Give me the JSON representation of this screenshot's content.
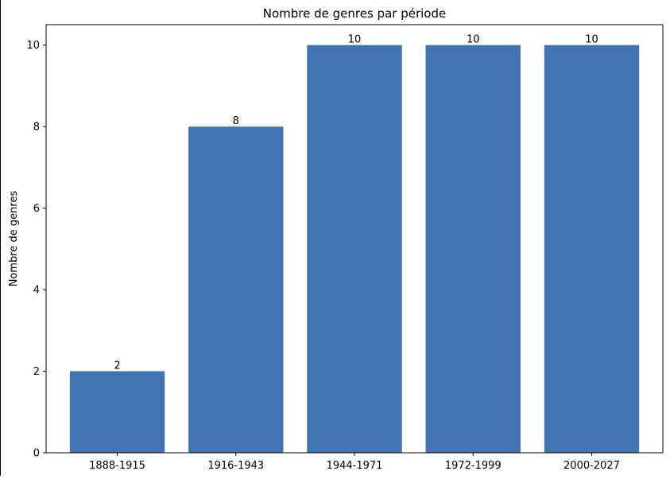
{
  "chart_data": {
    "type": "bar",
    "title": "Nombre de genres par période",
    "xlabel": "",
    "ylabel": "Nombre de genres",
    "categories": [
      "1888-1915",
      "1916-1943",
      "1944-1971",
      "1972-1999",
      "2000-2027"
    ],
    "values": [
      2,
      8,
      10,
      10,
      10
    ],
    "data_labels": [
      "2",
      "8",
      "10",
      "10",
      "10"
    ],
    "ylim": [
      0,
      10.5
    ],
    "yticks": [
      0,
      2,
      4,
      6,
      8,
      10
    ],
    "ytick_labels": [
      "0",
      "2",
      "4",
      "6",
      "8",
      "10"
    ],
    "grid": false,
    "legend": "none",
    "bar_color": "#4173b3"
  }
}
